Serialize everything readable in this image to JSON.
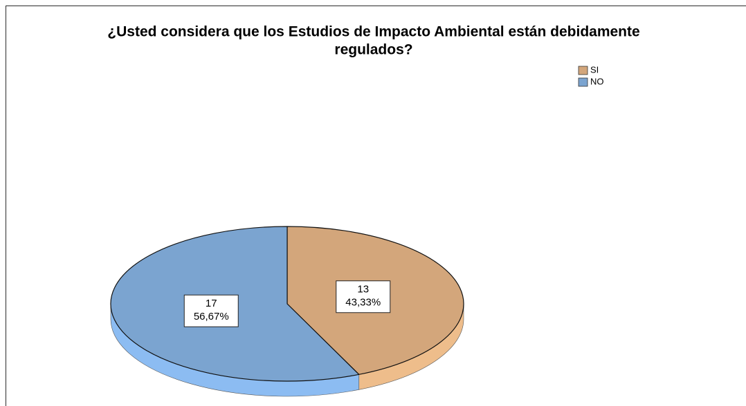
{
  "chart_data": {
    "type": "pie",
    "title": [
      "¿Usted considera que los Estudios de Impacto Ambiental están debidamente",
      "regulados?"
    ],
    "categories": [
      "SI",
      "NO"
    ],
    "values": [
      13,
      17
    ],
    "percentages": [
      43.33,
      56.67
    ],
    "percentage_labels": [
      "43,33%",
      "56,67%"
    ],
    "colors": [
      "#d3a67b",
      "#7ba4d0"
    ],
    "side_colors": [
      "#eebd8b",
      "#8cbcf2"
    ],
    "legend": "top-right"
  }
}
